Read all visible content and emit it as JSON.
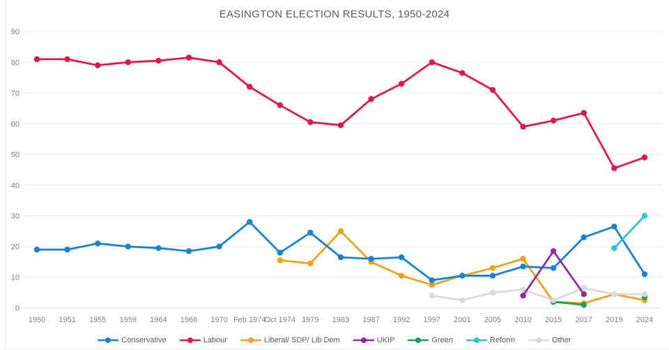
{
  "chart_data": {
    "type": "line",
    "title": "EASINGTON ELECTION RESULTS, 1950-2024",
    "categories": [
      "1950",
      "1951",
      "1955",
      "1959",
      "1964",
      "1966",
      "1970",
      "Feb 1974",
      "Oct 1974",
      "1979",
      "1983",
      "1987",
      "1992",
      "1997",
      "2001",
      "2005",
      "2010",
      "2015",
      "2017",
      "2019",
      "2024"
    ],
    "series": [
      {
        "name": "Conservative",
        "color": "#1583d5",
        "values": [
          19,
          19,
          21,
          20,
          19.5,
          18.5,
          20,
          28,
          18,
          24.5,
          16.5,
          16,
          16.5,
          9,
          10.5,
          10.5,
          13.5,
          13,
          23,
          26.5,
          11
        ]
      },
      {
        "name": "Labour",
        "color": "#e2164a",
        "values": [
          81,
          81,
          79,
          80,
          80.5,
          81.5,
          80,
          72,
          66,
          60.5,
          59.5,
          68,
          73,
          80,
          76.5,
          71,
          59,
          61,
          63.5,
          45.5,
          49
        ]
      },
      {
        "name": "Liberal/ SDP/ Lib Dem",
        "color": "#f2a116",
        "values": [
          null,
          null,
          null,
          null,
          null,
          null,
          null,
          null,
          15.5,
          14.5,
          25,
          15,
          10.5,
          7.5,
          10.5,
          13,
          16,
          2,
          1.5,
          4.5,
          2.5
        ]
      },
      {
        "name": "UKIP",
        "color": "#8e2d9c",
        "values": [
          null,
          null,
          null,
          null,
          null,
          null,
          null,
          null,
          null,
          null,
          null,
          null,
          null,
          null,
          null,
          null,
          4,
          18.5,
          4.5,
          null,
          null
        ]
      },
      {
        "name": "Green",
        "color": "#12a351",
        "values": [
          null,
          null,
          null,
          null,
          null,
          null,
          null,
          null,
          null,
          null,
          null,
          null,
          null,
          null,
          null,
          null,
          null,
          2,
          1,
          null,
          3.5
        ]
      },
      {
        "name": "Reform",
        "color": "#26c4dd",
        "values": [
          null,
          null,
          null,
          null,
          null,
          null,
          null,
          null,
          null,
          null,
          null,
          null,
          null,
          null,
          null,
          null,
          null,
          null,
          null,
          19.5,
          30
        ]
      },
      {
        "name": "Other",
        "color": "#d9d9d9",
        "values": [
          null,
          null,
          null,
          null,
          null,
          null,
          null,
          null,
          null,
          null,
          null,
          null,
          null,
          4,
          2.5,
          5,
          6,
          2.5,
          6.5,
          4.5,
          4.5
        ]
      }
    ],
    "y_ticks": [
      0,
      10,
      20,
      30,
      40,
      50,
      60,
      70,
      80,
      90
    ],
    "ylim": [
      0,
      90
    ],
    "grid": true,
    "legend_position": "bottom"
  },
  "colors": {
    "title": "#595959",
    "axis_labels": "#7f7f7f",
    "gridline": "#e9e9e9",
    "background": "#ffffff"
  }
}
